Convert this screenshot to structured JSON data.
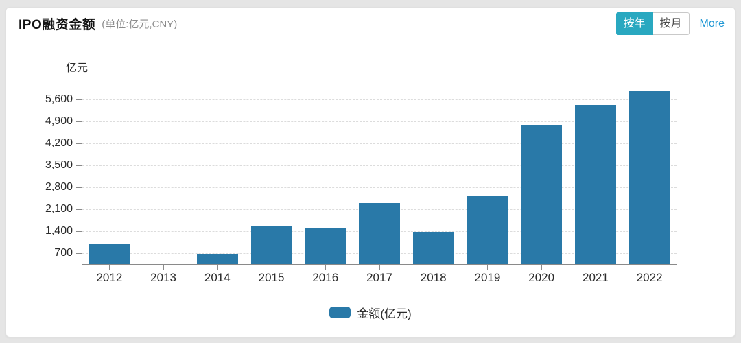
{
  "header": {
    "title": "IPO融资金额",
    "subtitle": "(单位:亿元,CNY)",
    "toggle": {
      "by_year": "按年",
      "by_month": "按月",
      "selected": "按年"
    },
    "more_label": "More"
  },
  "colors": {
    "bar": "#2979a8",
    "toggle_active_bg": "#29a8c0",
    "more_link": "#1e97d4",
    "axis": "#8a8a8a",
    "gridline": "#dcdcdc"
  },
  "chart_data": {
    "type": "bar",
    "title": "IPO融资金额 (单位:亿元,CNY)",
    "unit_label": "亿元",
    "categories": [
      "2012",
      "2013",
      "2014",
      "2015",
      "2016",
      "2017",
      "2018",
      "2019",
      "2020",
      "2021",
      "2022"
    ],
    "series": [
      {
        "name": "金额(亿元)",
        "values": [
          995,
          0,
          669,
          1578,
          1496,
          2301,
          1378,
          2532,
          4793,
          5426,
          5869
        ]
      }
    ],
    "xlabel": "",
    "ylabel": "亿元",
    "y_ticks": [
      700,
      1400,
      2100,
      2800,
      3500,
      4200,
      4900,
      5600
    ],
    "ylim": [
      0,
      6160
    ],
    "grid": "horizontal-dashed",
    "legend_position": "bottom-center"
  }
}
